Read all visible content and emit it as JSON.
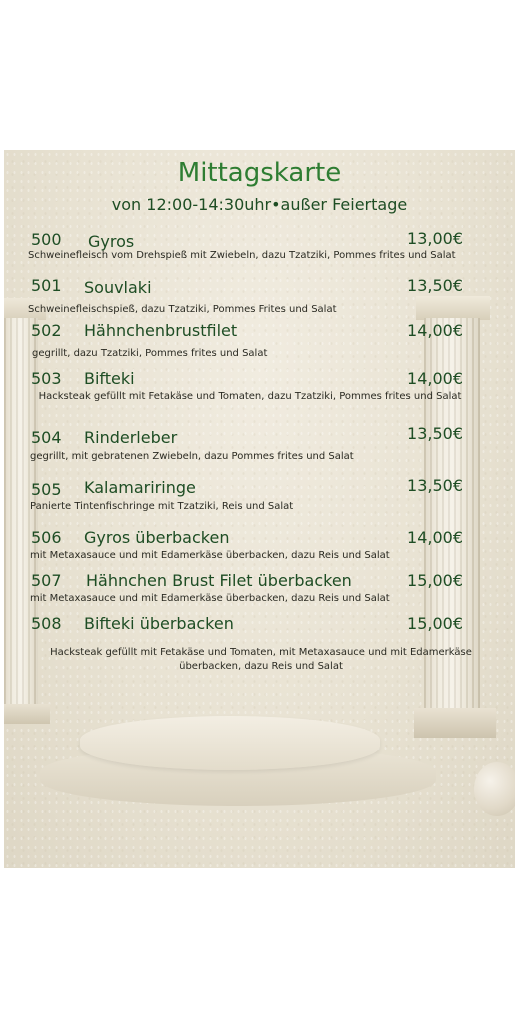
{
  "menu": {
    "title": "Mittagskarte",
    "subtitle": "von 12:00-14:30uhr•außer Feiertage",
    "items": [
      {
        "number": "500",
        "name": "Gyros",
        "price": "13,00€",
        "description": "Schweinefleisch vom Drehspieß mit Zwiebeln, dazu Tzatziki, Pommes frites und Salat"
      },
      {
        "number": "501",
        "name": "Souvlaki",
        "price": "13,50€",
        "description": "Schweinefleischspieß, dazu Tzatziki, Pommes Frites und Salat"
      },
      {
        "number": "502",
        "name": "Hähnchenbrustfilet",
        "price": "14,00€",
        "description": "gegrillt, dazu Tzatziki, Pommes frites und Salat"
      },
      {
        "number": "503",
        "name": "Bifteki",
        "price": "14,00€",
        "description": "Hacksteak gefüllt mit Fetakäse und Tomaten, dazu Tzatziki, Pommes frites und Salat"
      },
      {
        "number": "504",
        "name": "Rinderleber",
        "price": "13,50€",
        "description": "gegrillt, mit gebratenen Zwiebeln, dazu Pommes frites und Salat"
      },
      {
        "number": "505",
        "name": "Kalamariringe",
        "price": "13,50€",
        "description": "Panierte Tintenfischringe mit Tzatziki, Reis  und Salat"
      },
      {
        "number": "506",
        "name": "Gyros überbacken",
        "price": "14,00€",
        "description": "mit Metaxasauce und mit Edamerkäse überbacken, dazu Reis und Salat"
      },
      {
        "number": "507",
        "name": "Hähnchen Brust Filet überbacken",
        "price": "15,00€",
        "description": "mit Metaxasauce und mit Edamerkäse überbacken, dazu Reis und Salat"
      },
      {
        "number": "508",
        "name": "Bifteki überbacken",
        "price": "15,00€",
        "description": "Hacksteak gefüllt mit Fetakäse und Tomaten, mit Metaxasauce und mit Edamerkäse überbacken, dazu Reis und Salat"
      }
    ]
  },
  "colors": {
    "title": "#2e7d32",
    "text": "#1e4d24",
    "background": "#ffffff"
  }
}
